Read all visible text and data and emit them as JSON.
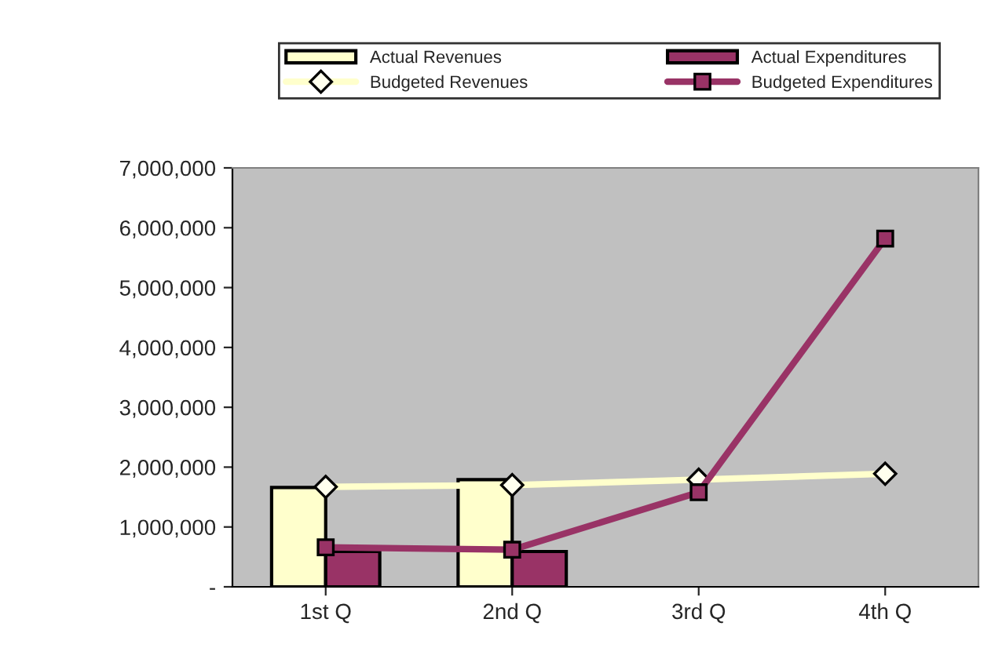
{
  "chart_data": {
    "type": "bar",
    "categories": [
      "1st Q",
      "2nd Q",
      "3rd Q",
      "4th Q"
    ],
    "series": [
      {
        "name": "Actual Revenues",
        "color": "#ffffcc",
        "values": [
          1660000,
          1790000,
          null,
          null
        ]
      },
      {
        "name": "Actual Expenditures",
        "color": "#993366",
        "values": [
          590000,
          590000,
          null,
          null
        ]
      },
      {
        "name": "Budgeted Revenues",
        "type": "line",
        "color": "#ffffcc",
        "marker": "diamond",
        "values": [
          1670000,
          1700000,
          1790000,
          1890000
        ]
      },
      {
        "name": "Budgeted Expenditures",
        "type": "line",
        "color": "#993366",
        "marker": "square",
        "values": [
          660000,
          620000,
          1580000,
          5820000
        ]
      }
    ],
    "ylim": [
      0,
      7000000
    ],
    "yticks": [
      {
        "value": 0,
        "label": "-"
      },
      {
        "value": 1000000,
        "label": "1,000,000"
      },
      {
        "value": 2000000,
        "label": "2,000,000"
      },
      {
        "value": 3000000,
        "label": "3,000,000"
      },
      {
        "value": 4000000,
        "label": "4,000,000"
      },
      {
        "value": 5000000,
        "label": "5,000,000"
      },
      {
        "value": 6000000,
        "label": "6,000,000"
      },
      {
        "value": 7000000,
        "label": "7,000,000"
      }
    ],
    "grid": false,
    "legend": "top"
  }
}
